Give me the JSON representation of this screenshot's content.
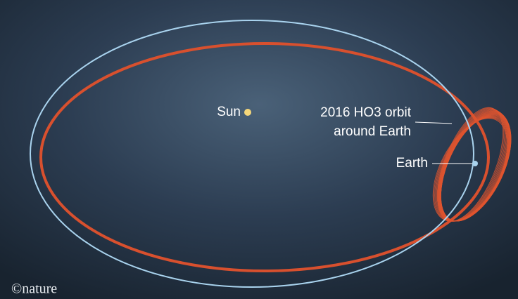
{
  "labels": {
    "sun": "Sun",
    "orbit": [
      "2016 HO3 orbit",
      "around Earth"
    ],
    "earth": "Earth"
  },
  "credit": "©nature"
}
